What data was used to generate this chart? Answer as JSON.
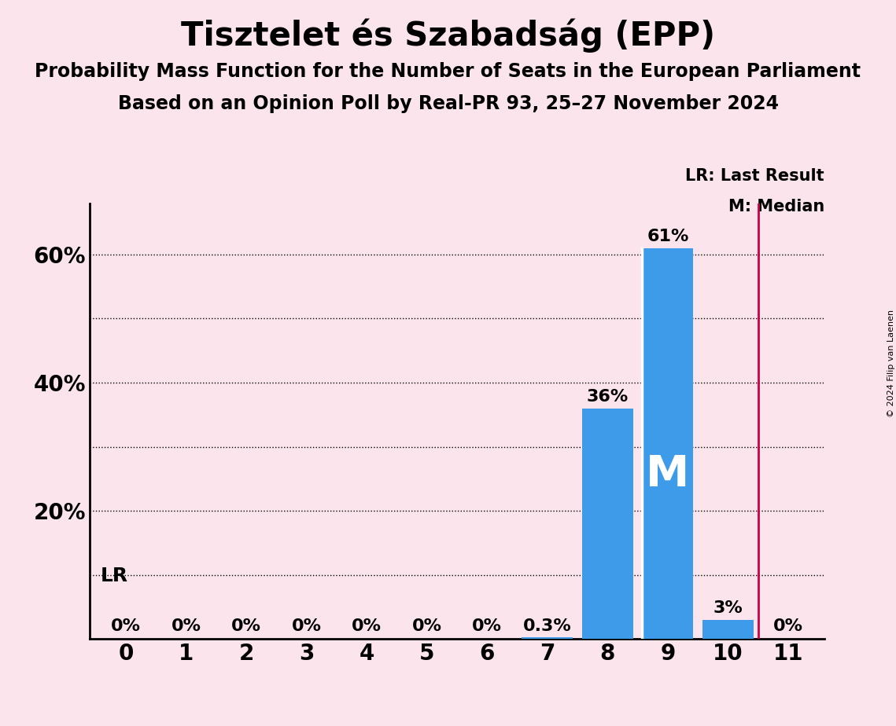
{
  "title": "Tisztelet és Szabadság (EPP)",
  "subtitle1": "Probability Mass Function for the Number of Seats in the European Parliament",
  "subtitle2": "Based on an Opinion Poll by Real-PR 93, 25–27 November 2024",
  "copyright": "© 2024 Filip van Laenen",
  "categories": [
    0,
    1,
    2,
    3,
    4,
    5,
    6,
    7,
    8,
    9,
    10,
    11
  ],
  "values": [
    0.0,
    0.0,
    0.0,
    0.0,
    0.0,
    0.0,
    0.0,
    0.003,
    0.36,
    0.61,
    0.03,
    0.0
  ],
  "bar_labels": [
    "0%",
    "0%",
    "0%",
    "0%",
    "0%",
    "0%",
    "0%",
    "0.3%",
    "36%",
    "61%",
    "3%",
    "0%"
  ],
  "bar_color": "#3d9be9",
  "background_color": "#fce4ec",
  "median_seat": 9,
  "median_label": "M",
  "last_result_seat": 10.5,
  "lr_label": "LR",
  "lr_line_color": "#cc0044",
  "ylim": [
    0,
    0.68
  ],
  "yticks": [
    0.0,
    0.2,
    0.4,
    0.6
  ],
  "ytick_labels": [
    "",
    "20%",
    "40%",
    "60%"
  ],
  "grid_levels": [
    0.1,
    0.2,
    0.3,
    0.4,
    0.5,
    0.6
  ],
  "title_fontsize": 30,
  "subtitle_fontsize": 17,
  "label_fontsize": 16,
  "tick_fontsize": 18,
  "legend_lr": "LR: Last Result",
  "legend_m": "M: Median"
}
